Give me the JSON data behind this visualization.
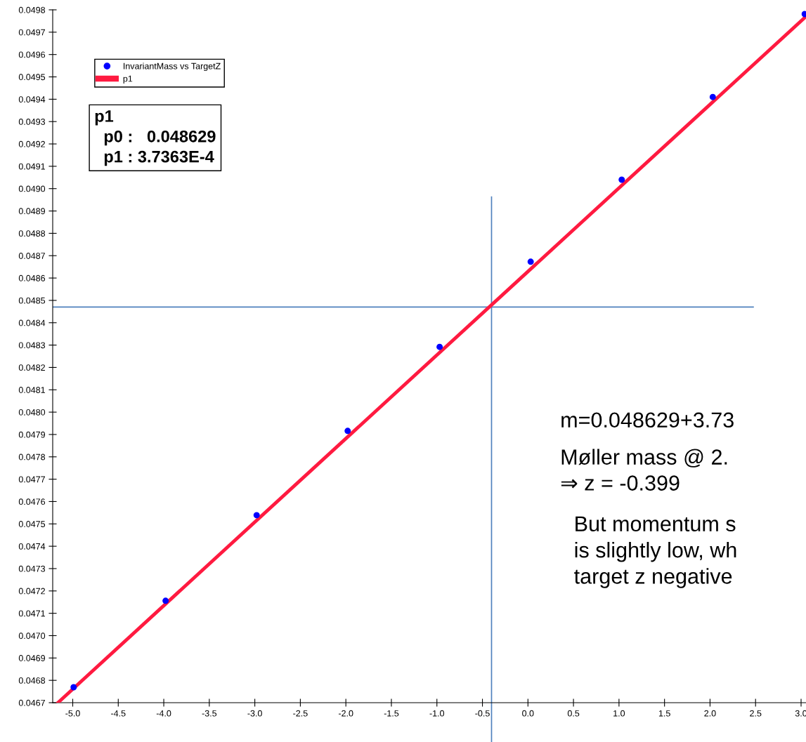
{
  "chart_data": {
    "type": "scatter",
    "xlim": [
      -5.22,
      3.054
    ],
    "ylim": [
      0.0467,
      0.0498
    ],
    "xticks": [
      {
        "value": -5.0,
        "label": "-5.0"
      },
      {
        "value": -4.5,
        "label": "-4.5"
      },
      {
        "value": -4.0,
        "label": "-4.0"
      },
      {
        "value": -3.5,
        "label": "-3.5"
      },
      {
        "value": -3.0,
        "label": "-3.0"
      },
      {
        "value": -2.5,
        "label": "-2.5"
      },
      {
        "value": -2.0,
        "label": "-2.0"
      },
      {
        "value": -1.5,
        "label": "-1.5"
      },
      {
        "value": -1.0,
        "label": "-1.0"
      },
      {
        "value": -0.5,
        "label": "-0.5"
      },
      {
        "value": 0.0,
        "label": "0.0"
      },
      {
        "value": 0.5,
        "label": "0.5"
      },
      {
        "value": 1.0,
        "label": "1.0"
      },
      {
        "value": 1.5,
        "label": "1.5"
      },
      {
        "value": 2.0,
        "label": "2.0"
      },
      {
        "value": 2.5,
        "label": "2.5"
      },
      {
        "value": 3.0,
        "label": "3.0"
      }
    ],
    "yticks": [
      0.0467,
      0.0468,
      0.0469,
      {
        "value": 0.047,
        "label": "0.0470"
      },
      0.0471,
      0.0472,
      0.0473,
      0.0474,
      0.0475,
      0.0476,
      0.0477,
      0.0478,
      0.0479,
      {
        "value": 0.048,
        "label": "0.0480"
      },
      0.0481,
      0.0482,
      0.0483,
      0.0484,
      0.0485,
      0.0486,
      0.0487,
      0.0488,
      0.0489,
      {
        "value": 0.049,
        "label": "0.0490"
      },
      0.0491,
      0.0492,
      0.0493,
      0.0494,
      0.0495,
      0.0496,
      0.0497,
      0.0498
    ],
    "grid": false,
    "legend": "top left",
    "series": [
      {
        "name": "InvariantMass vs TargetZ",
        "marker": "circle",
        "color": "#0000ff",
        "x": [
          -4.99,
          -3.98,
          -2.98,
          -1.98,
          -0.97,
          0.03,
          1.03,
          2.03,
          3.04
        ],
        "values": [
          0.046769,
          0.047156,
          0.047539,
          0.047916,
          0.048292,
          0.048673,
          0.04904,
          0.04941,
          0.049781
        ]
      },
      {
        "name": "p1",
        "type": "line",
        "color": "#ff1a40",
        "line_style": "solid",
        "x": [
          -5.16,
          3.05
        ],
        "values": [
          0.046701,
          0.049769
        ]
      }
    ],
    "ref_lines": [
      {
        "axis": "x",
        "value": -0.4,
        "color": "#4f81bd"
      },
      {
        "axis": "y",
        "value": 0.04847,
        "color": "#4f81bd"
      }
    ],
    "annotations": [
      "p1\n  p0 :   0.048629\n  p1 : 3.7363E-4",
      "m=0.048629+3.73",
      "Møller mass @ 2.",
      "⇒ z = -0.399",
      "But momentum s\nis slightly low, wh\ntarget z negative"
    ]
  }
}
